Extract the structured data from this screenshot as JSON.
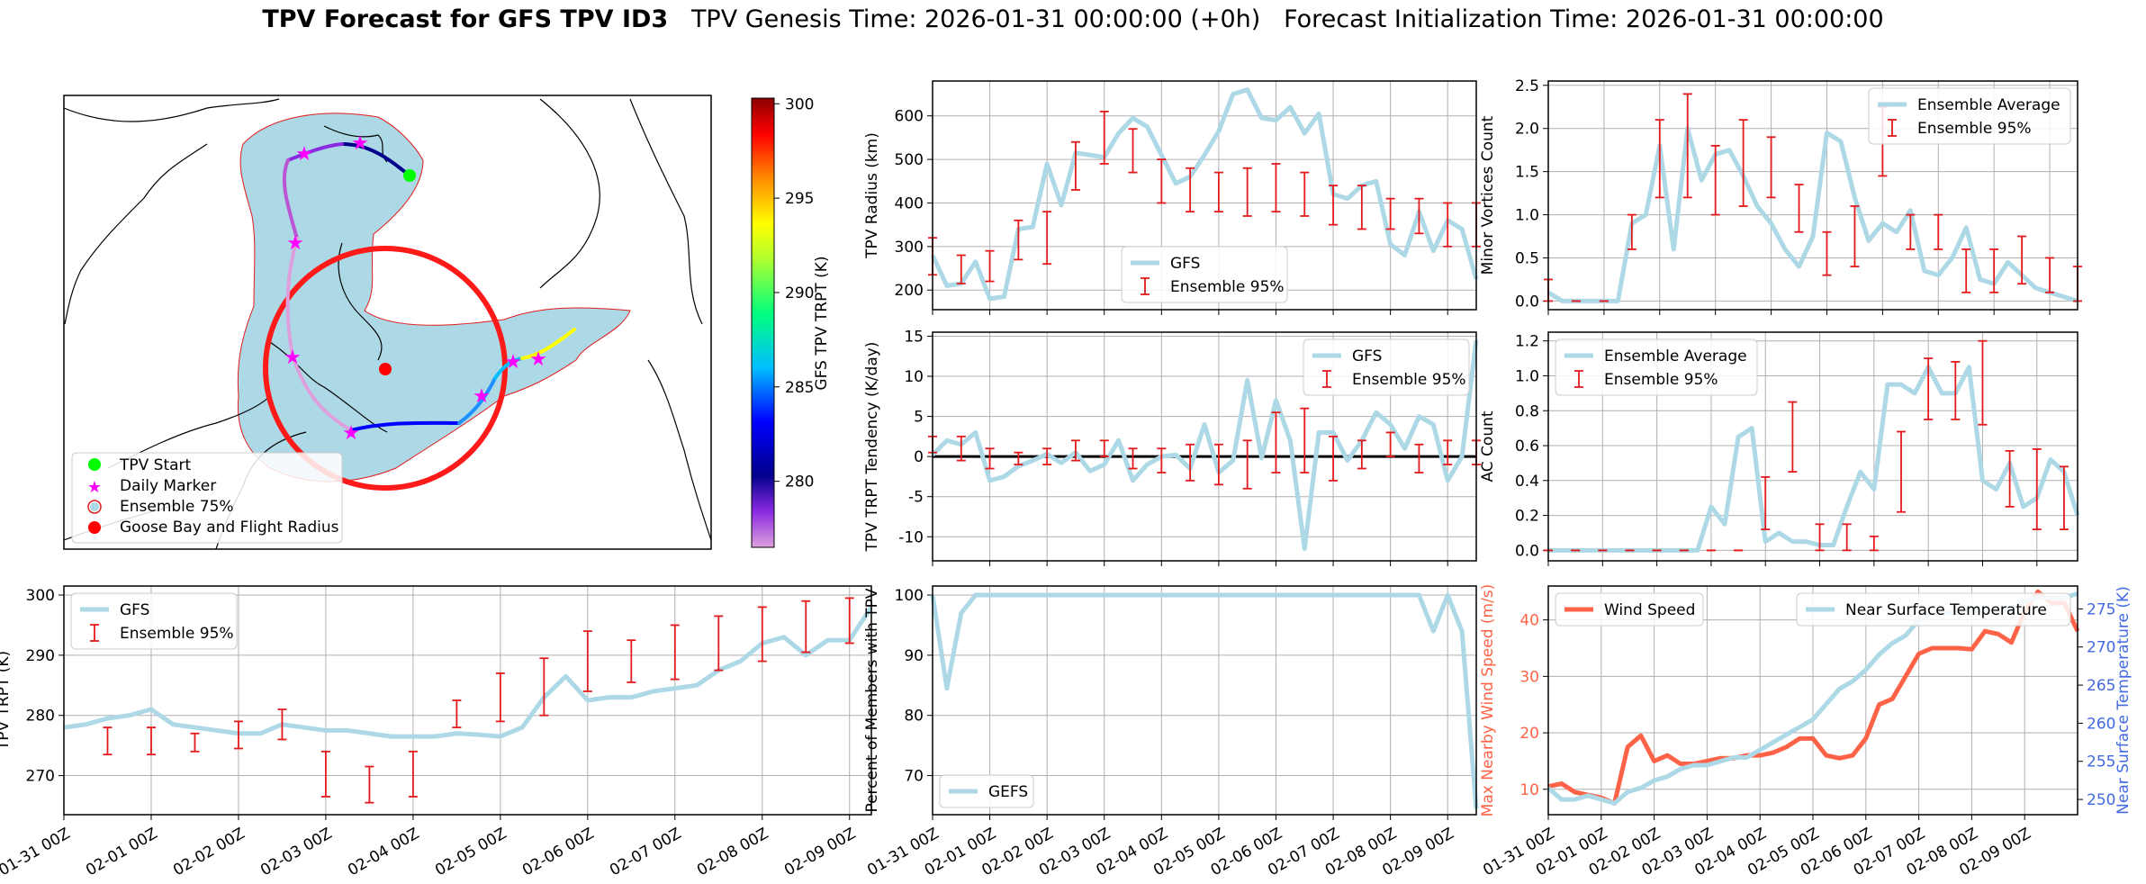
{
  "suptitle": {
    "bold": "TPV Forecast for GFS TPV ID3",
    "genesis": "TPV Genesis Time: 2026-01-31 00:00:00 (+0h)",
    "init": "Forecast Initialization Time: 2026-01-31 00:00:00"
  },
  "colors": {
    "gfs": "#add8e6",
    "ens_err": "#e31a1c",
    "wind": "#ff6347",
    "temp_axis": "#4169e1",
    "wind_axis": "#ff6347",
    "circle": "#ff1a1a",
    "start": "#00ff00",
    "marker": "#ff00ff",
    "goose": "#ff0000"
  },
  "date_ticks": [
    "01-31 00Z",
    "02-01 00Z",
    "02-02 00Z",
    "02-03 00Z",
    "02-04 00Z",
    "02-05 00Z",
    "02-06 00Z",
    "02-07 00Z",
    "02-08 00Z",
    "02-09 00Z"
  ],
  "map_panel": {
    "legend": [
      "TPV Start",
      "Daily Marker",
      "Ensemble 75%",
      "Goose Bay and Flight Radius"
    ],
    "colorbar_label": "GFS TPV TRPT (K)",
    "colorbar_ticks": [
      "300",
      "295",
      "290",
      "285",
      "280"
    ],
    "colorbar_range": [
      276.5,
      300.3
    ]
  },
  "chart_data": [
    {
      "id": "radius",
      "type": "line",
      "ylabel": "TPV Radius (km)",
      "ylim": [
        155,
        680
      ],
      "yticks": [
        200,
        300,
        400,
        500,
        600
      ],
      "legend": [
        "GFS",
        "Ensemble 95%"
      ],
      "legend_loc": "lower center",
      "series": [
        {
          "name": "GFS",
          "values": [
            280,
            210,
            215,
            265,
            180,
            185,
            340,
            345,
            490,
            395,
            515,
            510,
            505,
            560,
            595,
            575,
            510,
            445,
            460,
            510,
            565,
            650,
            660,
            595,
            590,
            620,
            560,
            605,
            420,
            410,
            440,
            450,
            305,
            280,
            380,
            290,
            360,
            340,
            225
          ]
        }
      ],
      "err_x": [
        0,
        1,
        2,
        3,
        4,
        5,
        6,
        7,
        8,
        9,
        10,
        11,
        12,
        13,
        14,
        15,
        16,
        17,
        18,
        19,
        20
      ],
      "err_lo": [
        235,
        215,
        220,
        270,
        260,
        430,
        490,
        470,
        400,
        380,
        380,
        370,
        380,
        370,
        350,
        340,
        340,
        330,
        300,
        300,
        290
      ],
      "err_hi": [
        320,
        280,
        290,
        360,
        380,
        540,
        610,
        570,
        500,
        480,
        470,
        480,
        490,
        470,
        440,
        440,
        410,
        410,
        400,
        400,
        390
      ]
    },
    {
      "id": "minor",
      "type": "line",
      "ylabel": "Minor Vortices Count",
      "ylim": [
        -0.1,
        2.55
      ],
      "yticks": [
        0.0,
        0.5,
        1.0,
        1.5,
        2.0,
        2.5
      ],
      "legend": [
        "Ensemble Average",
        "Ensemble 95%"
      ],
      "legend_loc": "upper right",
      "series": [
        {
          "name": "Ensemble Average",
          "values": [
            0.1,
            0.0,
            0.0,
            0.0,
            0.0,
            0.0,
            0.9,
            1.0,
            1.8,
            0.6,
            2.0,
            1.4,
            1.7,
            1.75,
            1.45,
            1.1,
            0.9,
            0.6,
            0.4,
            0.75,
            1.95,
            1.85,
            1.2,
            0.7,
            0.9,
            0.8,
            1.05,
            0.35,
            0.3,
            0.5,
            0.85,
            0.25,
            0.2,
            0.45,
            0.3,
            0.15,
            0.1,
            0.05,
            0.0
          ]
        }
      ],
      "err_lo": [
        0.0,
        0.0,
        0.0,
        0.6,
        1.2,
        1.2,
        1.0,
        1.1,
        1.2,
        0.8,
        0.3,
        0.4,
        1.45,
        0.6,
        0.6,
        0.1,
        0.1,
        0.2,
        0.1,
        0.0,
        0.0
      ],
      "err_hi": [
        0.25,
        0.0,
        0.0,
        1.0,
        2.1,
        2.4,
        1.8,
        2.1,
        1.9,
        1.35,
        0.8,
        1.1,
        2.25,
        1.0,
        1.0,
        0.6,
        0.6,
        0.75,
        0.5,
        0.4,
        0.25
      ]
    },
    {
      "id": "tendency",
      "type": "line",
      "ylabel": "TPV TRPT Tendency (K/day)",
      "ylim": [
        -13,
        15.5
      ],
      "yticks": [
        -10,
        -5,
        0,
        5,
        10,
        15
      ],
      "legend": [
        "GFS",
        "Ensemble 95%"
      ],
      "legend_loc": "upper right",
      "series": [
        {
          "name": "GFS",
          "values": [
            0.2,
            2.0,
            1.5,
            3.0,
            -3.0,
            -2.5,
            -1.2,
            -0.5,
            0.3,
            -0.8,
            0.5,
            -1.8,
            -1.0,
            2.0,
            -3.0,
            -1.0,
            0.0,
            0.2,
            -1.5,
            4.0,
            -2.0,
            -0.5,
            9.5,
            -0.2,
            7.0,
            2.0,
            -11.5,
            3.0,
            3.0,
            -0.5,
            2.0,
            5.5,
            4.0,
            1.0,
            5.0,
            4.0,
            -3.0,
            0.0,
            14.5
          ]
        }
      ],
      "err_lo": [
        0.5,
        -0.5,
        -1.5,
        -1.0,
        -1.0,
        -0.5,
        0.0,
        -1.5,
        -2.0,
        -3.0,
        -3.5,
        -4.0,
        -2.0,
        -2.0,
        -3.0,
        -1.5,
        0.0,
        -2.0,
        -1.0,
        -1.0,
        -2.5
      ],
      "err_hi": [
        2.5,
        2.5,
        1.0,
        0.5,
        1.0,
        2.0,
        2.0,
        1.0,
        1.0,
        1.5,
        1.5,
        2.0,
        5.5,
        6.0,
        2.5,
        2.0,
        3.0,
        1.5,
        2.0,
        2.0,
        5.0
      ]
    },
    {
      "id": "ac",
      "type": "line",
      "ylabel": "AC Count",
      "ylim": [
        -0.06,
        1.25
      ],
      "yticks": [
        0.0,
        0.2,
        0.4,
        0.6,
        0.8,
        1.0,
        1.2
      ],
      "legend": [
        "Ensemble Average",
        "Ensemble 95%"
      ],
      "legend_loc": "upper left",
      "series": [
        {
          "name": "Ensemble Average",
          "values": [
            0.0,
            0.0,
            0.0,
            0.0,
            0.0,
            0.0,
            0.0,
            0.0,
            0.0,
            0.0,
            0.0,
            0.0,
            0.25,
            0.15,
            0.65,
            0.7,
            0.05,
            0.1,
            0.05,
            0.05,
            0.03,
            0.03,
            0.25,
            0.45,
            0.35,
            0.95,
            0.95,
            0.9,
            1.05,
            0.9,
            0.9,
            1.05,
            0.4,
            0.35,
            0.5,
            0.25,
            0.3,
            0.52,
            0.45,
            0.2
          ]
        }
      ],
      "err_lo": [
        0.0,
        0.0,
        0.0,
        0.0,
        0.0,
        0.0,
        0.0,
        0.0,
        0.12,
        0.45,
        0.0,
        0.0,
        0.0,
        0.22,
        0.75,
        0.75,
        0.72,
        0.25,
        0.12,
        0.12,
        0.08
      ],
      "err_hi": [
        0.0,
        0.0,
        0.0,
        0.0,
        0.0,
        0.0,
        0.0,
        0.0,
        0.42,
        0.85,
        0.15,
        0.15,
        0.08,
        0.68,
        1.1,
        1.08,
        1.2,
        0.57,
        0.58,
        0.48,
        0.68
      ]
    },
    {
      "id": "trpt",
      "type": "line",
      "ylabel": "TPV TRPT (K)",
      "ylim": [
        263.5,
        301.5
      ],
      "yticks": [
        270,
        280,
        290,
        300
      ],
      "legend": [
        "GFS",
        "Ensemble 95%"
      ],
      "legend_loc": "upper left",
      "series": [
        {
          "name": "GFS",
          "values": [
            278.0,
            278.5,
            279.5,
            280.0,
            281.0,
            278.5,
            278.0,
            277.5,
            277.0,
            277.0,
            278.5,
            278.0,
            277.5,
            277.5,
            277.0,
            276.5,
            276.5,
            276.5,
            277.0,
            276.8,
            276.5,
            278.0,
            283.0,
            286.5,
            282.5,
            283.0,
            283.0,
            284.0,
            284.5,
            285.0,
            287.5,
            289.0,
            292.0,
            293.0,
            290.0,
            292.5,
            292.5,
            298.0
          ]
        }
      ],
      "err_lo": [
        273.5,
        273.5,
        274.0,
        274.5,
        276.0,
        266.5,
        265.5,
        266.5,
        278.0,
        279.0,
        280.0,
        284.0,
        285.5,
        286.0,
        287.5,
        289.0,
        290.5,
        292.0,
        293.5
      ],
      "err_hi": [
        278.0,
        278.0,
        277.0,
        279.0,
        281.0,
        274.0,
        271.5,
        274.0,
        282.5,
        287.0,
        289.5,
        294.0,
        292.5,
        295.0,
        296.5,
        298.0,
        299.0,
        299.5,
        300.5
      ]
    },
    {
      "id": "members",
      "type": "line",
      "ylabel": "Percent of Members with TPV",
      "ylim": [
        63.5,
        101.5
      ],
      "yticks": [
        70,
        80,
        90,
        100
      ],
      "legend": [
        "GEFS"
      ],
      "legend_loc": "lower left",
      "series": [
        {
          "name": "GEFS",
          "values": [
            100,
            84.5,
            97,
            100,
            100,
            100,
            100,
            100,
            100,
            100,
            100,
            100,
            100,
            100,
            100,
            100,
            100,
            100,
            100,
            100,
            100,
            100,
            100,
            100,
            100,
            100,
            100,
            100,
            100,
            100,
            100,
            100,
            100,
            100,
            100,
            94,
            100,
            94,
            64.5
          ]
        }
      ]
    },
    {
      "id": "wind_temp",
      "type": "line",
      "ylabel": "Max Nearby Wind Speed (m/s)",
      "ylim": [
        5.5,
        46
      ],
      "yticks": [
        10,
        20,
        30,
        40
      ],
      "y2label": "Near Surface Temperature (K)",
      "y2lim": [
        248,
        278
      ],
      "y2ticks": [
        250,
        255,
        260,
        265,
        270,
        275
      ],
      "legend": [
        "Wind Speed"
      ],
      "legend2": [
        "Near Surface Temperature"
      ],
      "series": [
        {
          "name": "Wind Speed",
          "axis": "left",
          "values": [
            10.5,
            11.0,
            9.5,
            9.0,
            8.5,
            7.5,
            17.5,
            19.5,
            15.0,
            16.0,
            14.5,
            14.5,
            15.0,
            15.5,
            15.5,
            16.0,
            16.0,
            16.5,
            17.5,
            19.0,
            19.0,
            16.0,
            15.5,
            16.0,
            19.0,
            25.0,
            26.0,
            30.0,
            34.0,
            35.0,
            35.0,
            35.0,
            34.8,
            38.0,
            37.5,
            36.0,
            41.5,
            45.0,
            43.0,
            43.0,
            38.0
          ]
        },
        {
          "name": "Near Surface Temperature",
          "axis": "right",
          "values": [
            251.5,
            250.0,
            250.0,
            250.5,
            250.0,
            249.5,
            251.0,
            251.5,
            252.5,
            253.0,
            254.0,
            254.5,
            254.5,
            255.0,
            255.5,
            255.5,
            256.5,
            257.5,
            258.5,
            259.5,
            260.5,
            262.5,
            264.5,
            265.5,
            267.0,
            269.0,
            270.5,
            271.5,
            273.5,
            274.5,
            274.5,
            274.5,
            274.8,
            274.8,
            274.5,
            275.0,
            276.0,
            276.5,
            276.5,
            276.5,
            277.0
          ]
        }
      ]
    }
  ]
}
